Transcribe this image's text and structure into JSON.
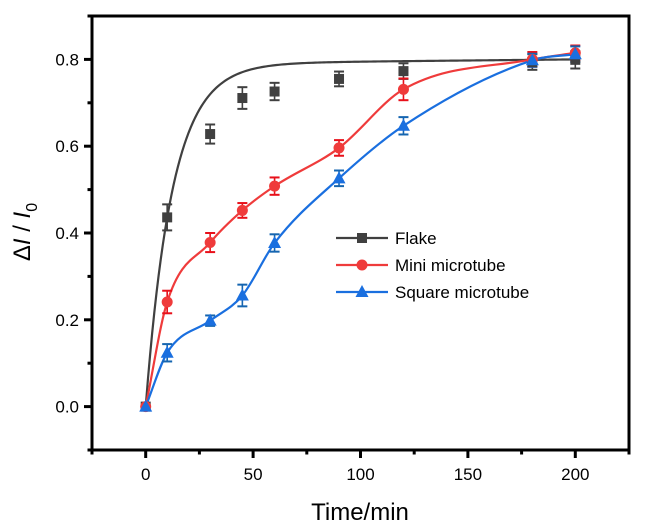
{
  "chart_data": {
    "type": "line",
    "title": "",
    "xlabel": "Time/min",
    "ylabel_parts": {
      "prefix": "Δ",
      "italic1": "I",
      "sep": " / ",
      "italic2": "I",
      "sub": "0"
    },
    "ylabel": "ΔI / I0",
    "xlim": [
      -25,
      225
    ],
    "ylim": [
      -0.1,
      0.9
    ],
    "xticks": [
      0,
      50,
      100,
      150,
      200
    ],
    "xtick_labels": [
      "0",
      "50",
      "100",
      "150",
      "200"
    ],
    "xminor": [
      -25,
      25,
      75,
      125,
      175,
      225
    ],
    "yticks": [
      0.0,
      0.2,
      0.4,
      0.6,
      0.8
    ],
    "ytick_labels": [
      "0.0",
      "0.2",
      "0.4",
      "0.6",
      "0.8"
    ],
    "yminor": [
      -0.1,
      0.1,
      0.3,
      0.5,
      0.7,
      0.9
    ],
    "grid": false,
    "legend_position": "center-right",
    "series": [
      {
        "name": "Flake",
        "color": "#404040",
        "errcolor": "#404040",
        "marker": "square",
        "x": [
          0,
          10,
          30,
          45,
          60,
          90,
          120,
          180,
          200
        ],
        "y": [
          0.0,
          0.436,
          0.628,
          0.711,
          0.726,
          0.755,
          0.773,
          0.794,
          0.799
        ],
        "err": [
          0.0,
          0.03,
          0.022,
          0.025,
          0.02,
          0.017,
          0.018,
          0.018,
          0.02
        ]
      },
      {
        "name": "Mini microtube",
        "color": "#ef3b3b",
        "errcolor": "#e8101a",
        "marker": "circle",
        "x": [
          0,
          10,
          30,
          45,
          60,
          90,
          120,
          180,
          200
        ],
        "y": [
          0.0,
          0.241,
          0.378,
          0.452,
          0.508,
          0.596,
          0.731,
          0.8,
          0.815
        ],
        "err": [
          0.0,
          0.026,
          0.022,
          0.017,
          0.02,
          0.018,
          0.025,
          0.017,
          0.017
        ]
      },
      {
        "name": "Square microtube",
        "color": "#1a6fdf",
        "errcolor": "#1565b0",
        "marker": "triangle",
        "x": [
          0,
          10,
          30,
          45,
          60,
          90,
          120,
          180,
          200
        ],
        "y": [
          0.0,
          0.124,
          0.198,
          0.256,
          0.377,
          0.526,
          0.647,
          0.798,
          0.812
        ],
        "err": [
          0.0,
          0.02,
          0.012,
          0.025,
          0.02,
          0.018,
          0.02,
          0.015,
          0.018
        ]
      }
    ],
    "fits": {
      "Flake": {
        "model": "exponential-rise",
        "A": 0.79,
        "tau": 12.5
      },
      "Mini microtube": {
        "model": "spline"
      },
      "Square microtube": {
        "model": "spline"
      }
    }
  }
}
